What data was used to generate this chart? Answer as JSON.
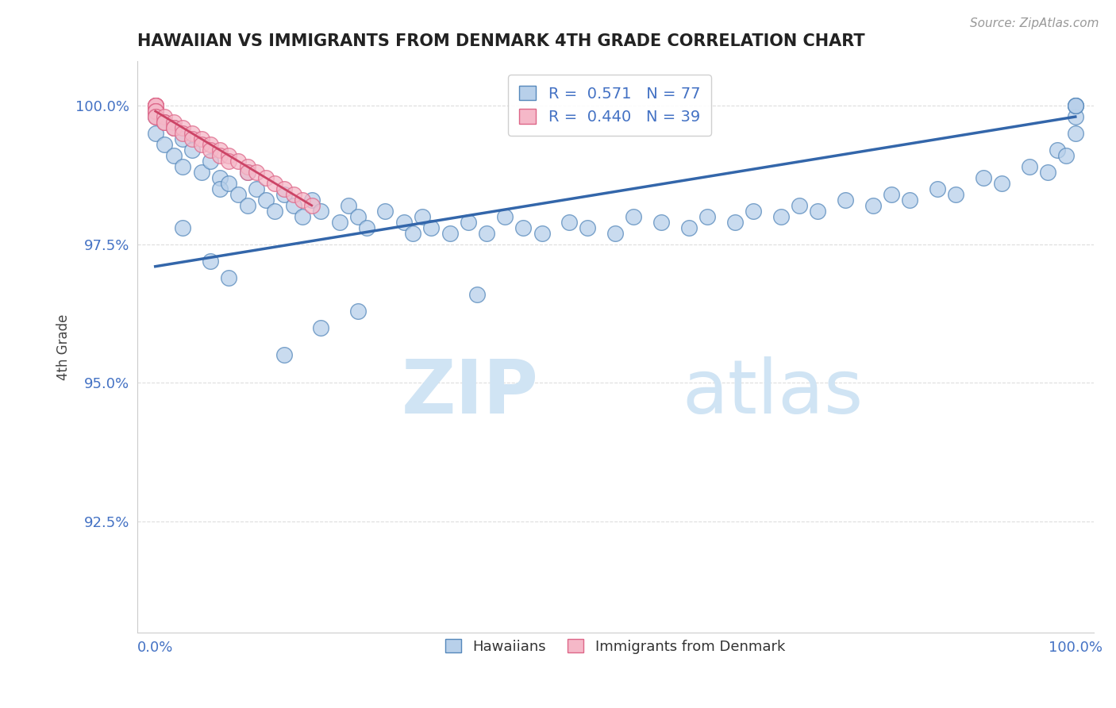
{
  "title": "HAWAIIAN VS IMMIGRANTS FROM DENMARK 4TH GRADE CORRELATION CHART",
  "source": "Source: ZipAtlas.com",
  "xlabel": "",
  "ylabel": "4th Grade",
  "xlim": [
    -0.02,
    1.02
  ],
  "ylim": [
    0.905,
    1.008
  ],
  "yticks": [
    0.925,
    0.95,
    0.975,
    1.0
  ],
  "ytick_labels": [
    "92.5%",
    "95.0%",
    "97.5%",
    "100.0%"
  ],
  "xtick_labels": [
    "0.0%",
    "100.0%"
  ],
  "xtick_vals": [
    0.0,
    1.0
  ],
  "legend_r_blue": "0.571",
  "legend_n_blue": "77",
  "legend_r_pink": "0.440",
  "legend_n_pink": "39",
  "blue_face_color": "#b8d0ea",
  "blue_edge_color": "#5588bb",
  "pink_face_color": "#f5b8c8",
  "pink_edge_color": "#dd6688",
  "blue_line_color": "#3366aa",
  "pink_line_color": "#cc4466",
  "watermark_color": "#d0e4f4",
  "title_color": "#222222",
  "tick_color": "#4472c4",
  "grid_color": "#dddddd",
  "source_color": "#999999",
  "ylabel_color": "#444444",
  "blue_x": [
    0.0,
    0.0,
    0.0,
    0.01,
    0.01,
    0.02,
    0.02,
    0.03,
    0.03,
    0.04,
    0.05,
    0.06,
    0.07,
    0.07,
    0.08,
    0.09,
    0.1,
    0.1,
    0.11,
    0.12,
    0.13,
    0.14,
    0.15,
    0.16,
    0.17,
    0.18,
    0.2,
    0.21,
    0.22,
    0.23,
    0.25,
    0.27,
    0.28,
    0.29,
    0.3,
    0.32,
    0.34,
    0.36,
    0.38,
    0.4,
    0.42,
    0.45,
    0.47,
    0.5,
    0.52,
    0.55,
    0.58,
    0.6,
    0.63,
    0.65,
    0.68,
    0.7,
    0.72,
    0.75,
    0.78,
    0.8,
    0.82,
    0.85,
    0.87,
    0.9,
    0.92,
    0.95,
    0.97,
    0.98,
    0.99,
    1.0,
    1.0,
    1.0,
    1.0,
    1.0,
    0.03,
    0.06,
    0.08,
    0.35,
    0.22,
    0.18,
    0.14
  ],
  "blue_y": [
    0.999,
    0.998,
    0.995,
    0.997,
    0.993,
    0.996,
    0.991,
    0.994,
    0.989,
    0.992,
    0.988,
    0.99,
    0.987,
    0.985,
    0.986,
    0.984,
    0.988,
    0.982,
    0.985,
    0.983,
    0.981,
    0.984,
    0.982,
    0.98,
    0.983,
    0.981,
    0.979,
    0.982,
    0.98,
    0.978,
    0.981,
    0.979,
    0.977,
    0.98,
    0.978,
    0.977,
    0.979,
    0.977,
    0.98,
    0.978,
    0.977,
    0.979,
    0.978,
    0.977,
    0.98,
    0.979,
    0.978,
    0.98,
    0.979,
    0.981,
    0.98,
    0.982,
    0.981,
    0.983,
    0.982,
    0.984,
    0.983,
    0.985,
    0.984,
    0.987,
    0.986,
    0.989,
    0.988,
    0.992,
    0.991,
    0.995,
    0.998,
    1.0,
    1.0,
    1.0,
    0.978,
    0.972,
    0.969,
    0.966,
    0.963,
    0.96,
    0.955
  ],
  "pink_x": [
    0.0,
    0.0,
    0.0,
    0.0,
    0.0,
    0.0,
    0.0,
    0.0,
    0.0,
    0.0,
    0.0,
    0.01,
    0.01,
    0.01,
    0.02,
    0.02,
    0.02,
    0.03,
    0.03,
    0.04,
    0.04,
    0.05,
    0.05,
    0.06,
    0.06,
    0.07,
    0.07,
    0.08,
    0.08,
    0.09,
    0.1,
    0.1,
    0.11,
    0.12,
    0.13,
    0.14,
    0.15,
    0.16,
    0.17
  ],
  "pink_y": [
    1.0,
    1.0,
    1.0,
    1.0,
    1.0,
    1.0,
    0.999,
    0.999,
    0.999,
    0.998,
    0.998,
    0.998,
    0.997,
    0.997,
    0.997,
    0.996,
    0.996,
    0.996,
    0.995,
    0.995,
    0.994,
    0.994,
    0.993,
    0.993,
    0.992,
    0.992,
    0.991,
    0.991,
    0.99,
    0.99,
    0.989,
    0.988,
    0.988,
    0.987,
    0.986,
    0.985,
    0.984,
    0.983,
    0.982
  ],
  "blue_trendline_x": [
    0.0,
    1.0
  ],
  "blue_trendline_y": [
    0.971,
    0.998
  ],
  "pink_trendline_x": [
    0.0,
    0.17
  ],
  "pink_trendline_y": [
    0.999,
    0.982
  ]
}
